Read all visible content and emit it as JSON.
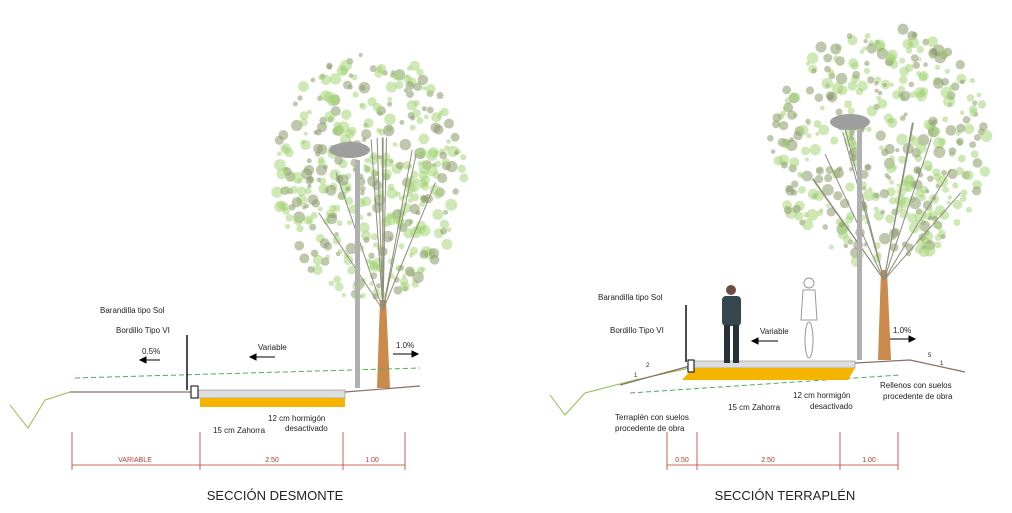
{
  "sections": [
    {
      "title": "SECCIÓN DESMONTE",
      "railing": "Barandilla tipo Sol",
      "curb": "Bordillo Tipo VI",
      "slope_left": "0.5%",
      "width_label": "Variable",
      "slope_right": "1.0%",
      "base": "15 cm Zahorra",
      "pavement": [
        "12 cm hormigón",
        "desactivado"
      ],
      "dimensions": [
        "VARIABLE",
        "2.50",
        "1.00"
      ]
    },
    {
      "title": "SECCIÓN TERRAPLÉN",
      "railing": "Barandilla tipo Sol",
      "curb": "Bordillo Tipo VI",
      "width_label": "Variable",
      "slope_right": "1.0%",
      "base": "15 cm Zahorra",
      "pavement": [
        "12 cm hormigón",
        "desactivado"
      ],
      "fill_left": [
        "Terraplén con suelos",
        "procedente de obra"
      ],
      "fill_right": [
        "Rellenos con suelos",
        "procedente de obra"
      ],
      "slope_ratio_left": [
        "2",
        "1"
      ],
      "slope_ratio_right": [
        "5",
        "1"
      ],
      "dimensions": [
        "0.50",
        "2.50",
        "1.00"
      ]
    }
  ]
}
